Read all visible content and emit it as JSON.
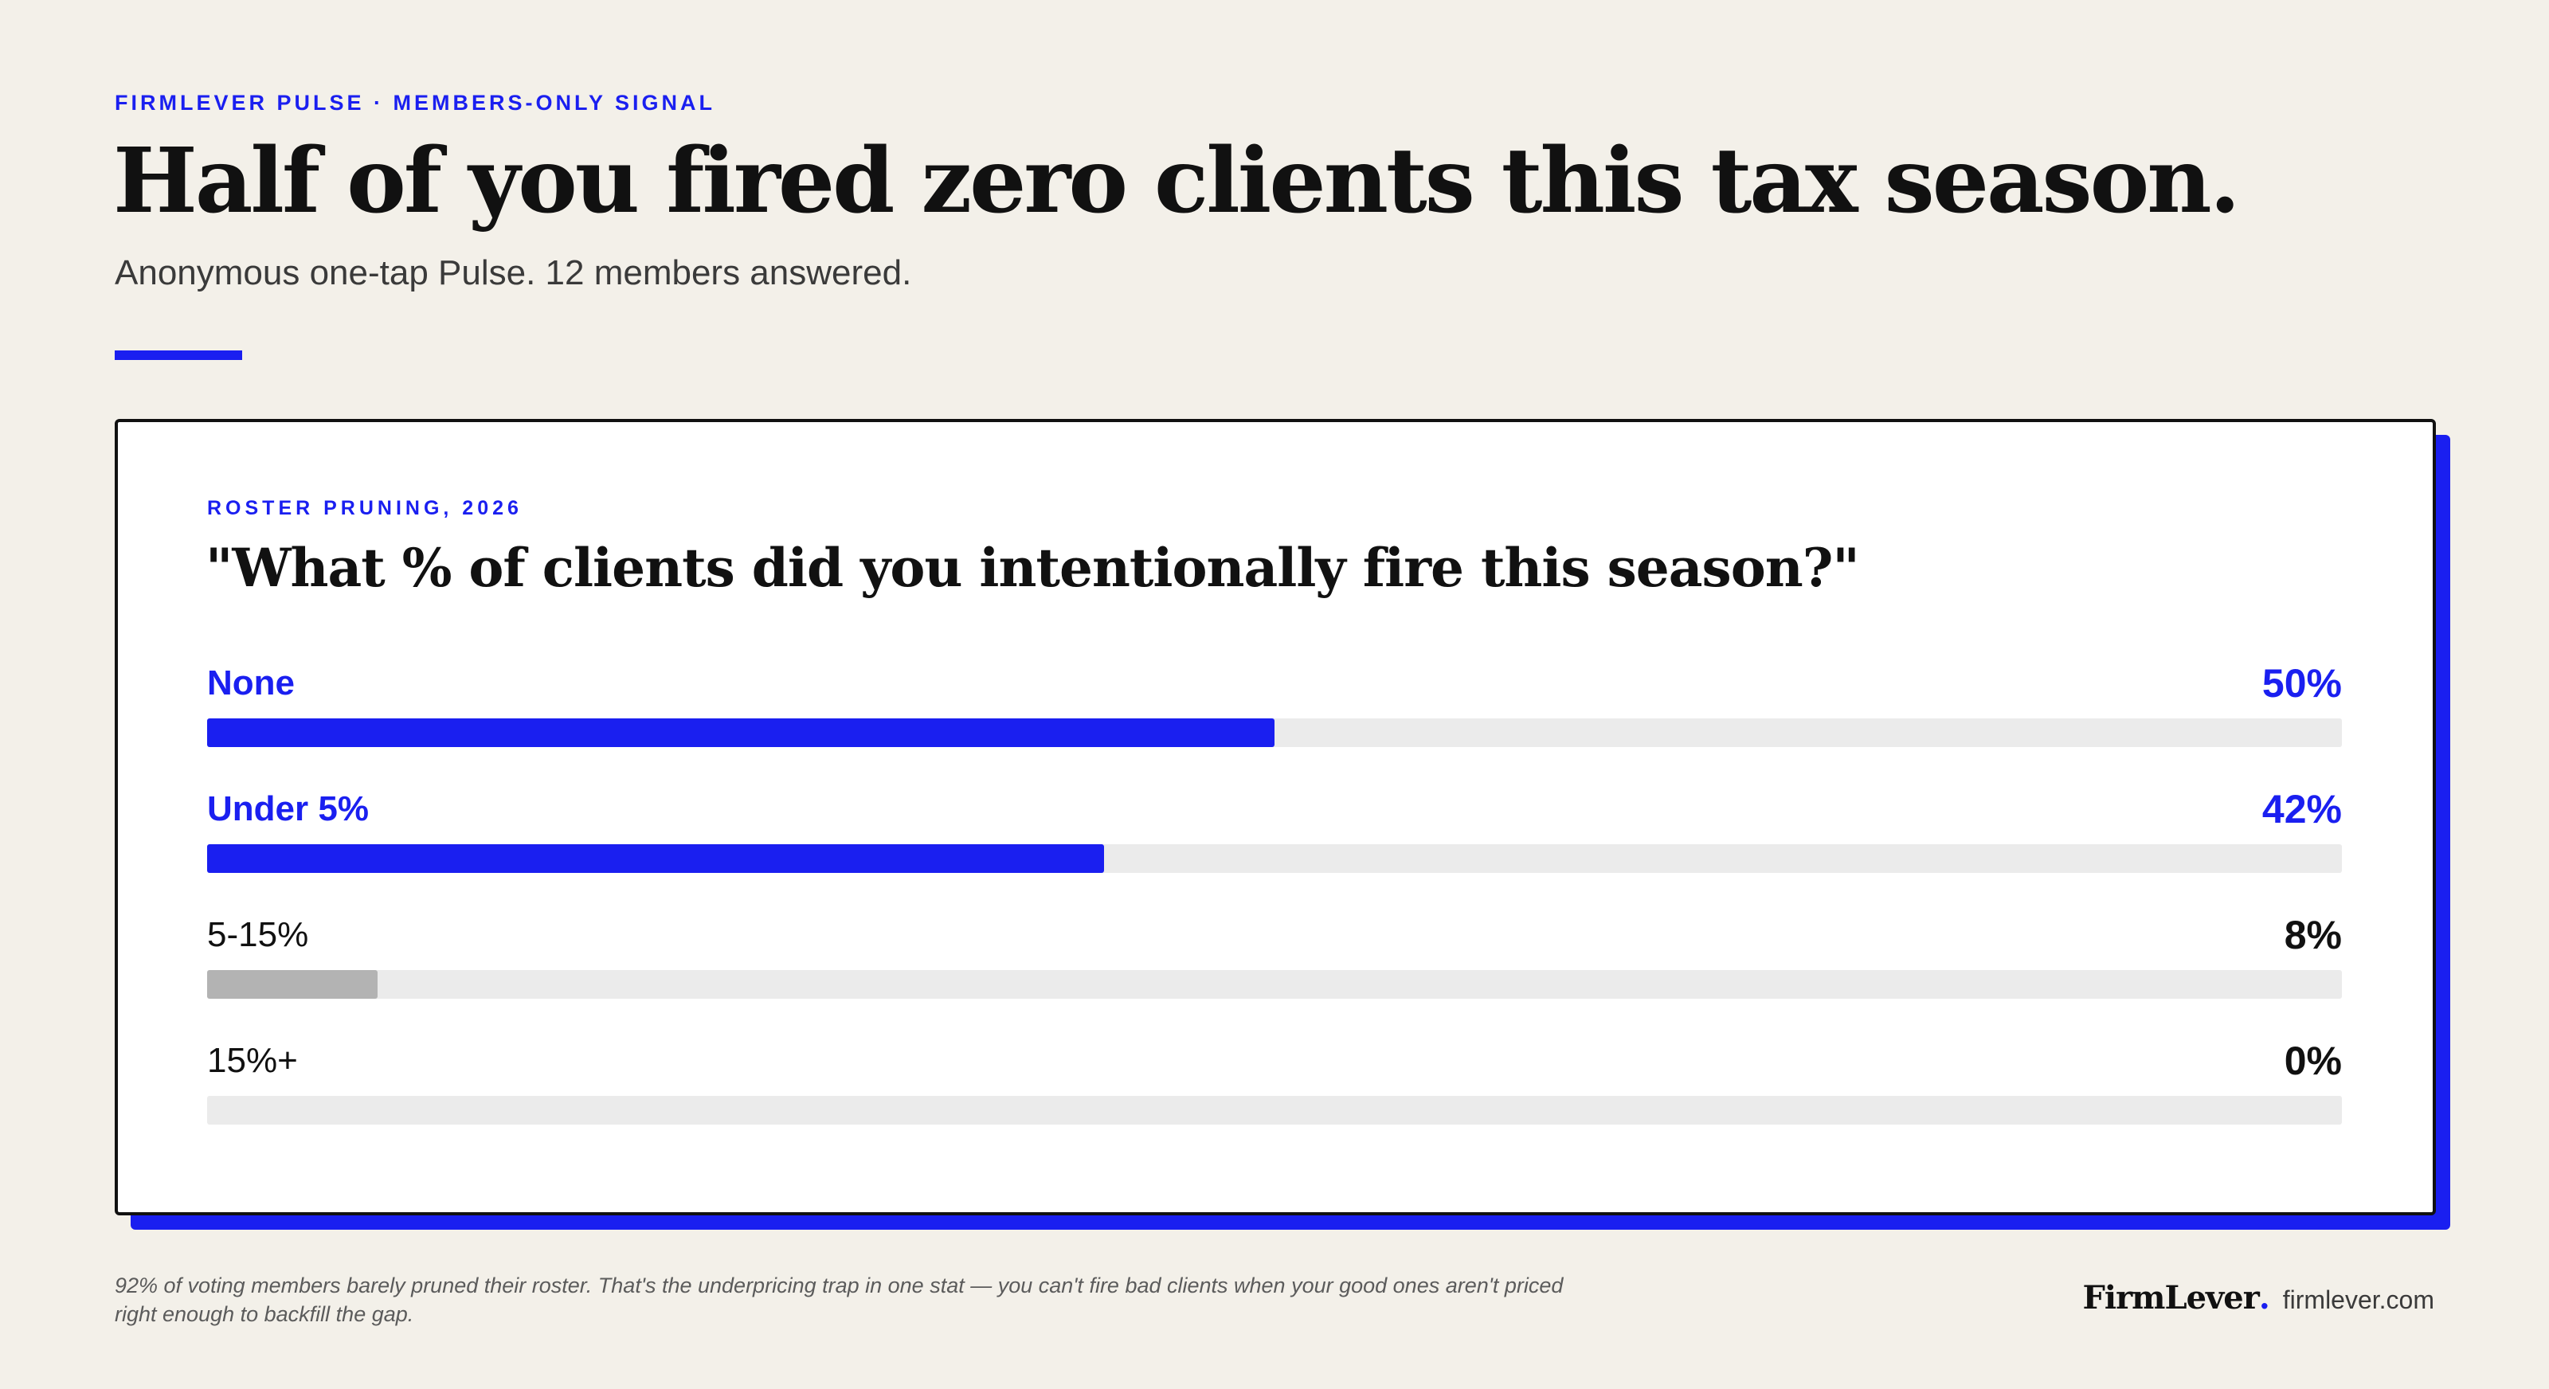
{
  "header": {
    "eyebrow": "FIRMLEVER PULSE · MEMBERS-ONLY SIGNAL",
    "headline": "Half of you fired zero clients this tax season.",
    "subhead": "Anonymous one-tap Pulse. 12 members answered."
  },
  "card": {
    "eyebrow": "ROSTER PRUNING, 2026",
    "question": "\"What % of clients did you intentionally fire this season?\""
  },
  "chart_data": {
    "type": "bar",
    "orientation": "horizontal",
    "title": "\"What % of clients did you intentionally fire this season?\"",
    "categories": [
      "None",
      "Under 5%",
      "5-15%",
      "15%+"
    ],
    "values": [
      50,
      42,
      8,
      0
    ],
    "value_labels": [
      "50%",
      "42%",
      "8%",
      "0%"
    ],
    "highlighted": [
      true,
      true,
      false,
      false
    ],
    "xlim": [
      0,
      100
    ],
    "unit": "%",
    "grid": false,
    "legend": "none"
  },
  "colors": {
    "accent": "#1a1ff0",
    "muted_bar": "#b3b3b3",
    "track": "#ebebeb",
    "background": "#f3f0e9"
  },
  "footer": {
    "note": "92% of voting members barely pruned their roster. That's the underpricing trap in one stat — you can't fire bad clients when your good ones aren't priced right enough to backfill the gap.",
    "brand_name": "FirmLever",
    "brand_dot": ".",
    "url": "firmlever.com"
  }
}
